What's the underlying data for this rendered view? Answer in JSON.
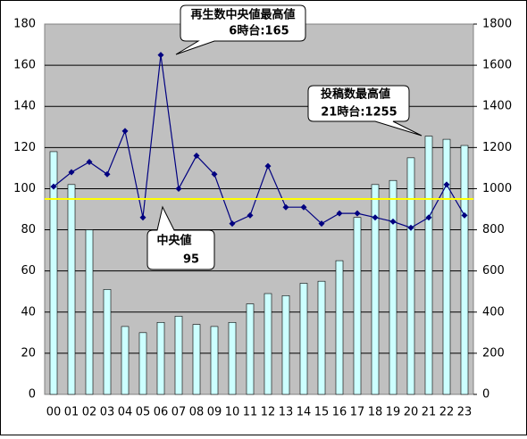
{
  "chart_data": {
    "type": "combo",
    "categories": [
      "00",
      "01",
      "02",
      "03",
      "04",
      "05",
      "06",
      "07",
      "08",
      "09",
      "10",
      "11",
      "12",
      "13",
      "14",
      "15",
      "16",
      "17",
      "18",
      "19",
      "20",
      "21",
      "22",
      "23"
    ],
    "series": [
      {
        "type": "bar",
        "axis": "y2",
        "color": "#ccffff",
        "values": [
          1180,
          1020,
          800,
          510,
          330,
          300,
          350,
          380,
          340,
          330,
          350,
          440,
          490,
          480,
          540,
          550,
          650,
          860,
          1020,
          1040,
          1150,
          1255,
          1240,
          1210
        ]
      },
      {
        "type": "line",
        "axis": "y",
        "color": "#000080",
        "values": [
          101,
          108,
          113,
          107,
          128,
          86,
          165,
          100,
          116,
          107,
          83,
          87,
          111,
          91,
          91,
          83,
          88,
          88,
          86,
          84,
          81,
          86,
          102,
          87
        ]
      }
    ],
    "median": 95,
    "median_color": "#ffff00",
    "ylim": [
      0,
      180
    ],
    "yticks": [
      0,
      20,
      40,
      60,
      80,
      100,
      120,
      140,
      160,
      180
    ],
    "y2lim": [
      0,
      1800
    ],
    "y2ticks": [
      0,
      200,
      400,
      600,
      800,
      1000,
      1200,
      1400,
      1600,
      1800
    ],
    "grid": true,
    "annotations": [
      {
        "lines": [
          "再生数中央値最高値",
          "6時台:165"
        ]
      },
      {
        "lines": [
          "投稿数最高値",
          "21時台:1255"
        ]
      },
      {
        "lines": [
          "中央値",
          "95"
        ]
      }
    ]
  }
}
